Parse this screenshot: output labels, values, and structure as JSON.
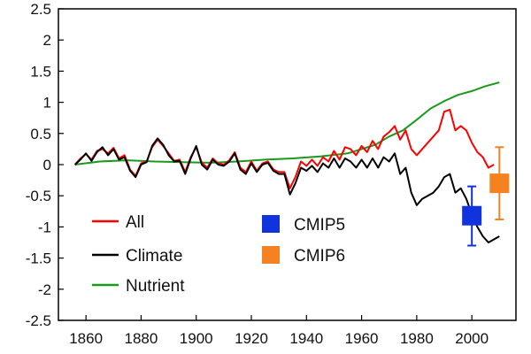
{
  "chart_data": {
    "type": "line",
    "title": "",
    "xlabel": "",
    "ylabel": "",
    "xlim": [
      1850,
      2016
    ],
    "ylim": [
      -2.5,
      2.5
    ],
    "xticks": [
      "1860",
      "1880",
      "1900",
      "1920",
      "1940",
      "1960",
      "1980",
      "2000"
    ],
    "yticks": [
      "2.5",
      "2",
      "1.5",
      "1",
      "0.5",
      "0",
      "-0.5",
      "-1",
      "-1.5",
      "-2",
      "-2.5"
    ],
    "grid": false,
    "legend_position": "lower-left",
    "series": [
      {
        "name": "All",
        "color": "#ff0000",
        "points": [
          [
            1856,
            0.0
          ],
          [
            1858,
            0.1
          ],
          [
            1860,
            0.17
          ],
          [
            1862,
            0.08
          ],
          [
            1864,
            0.22
          ],
          [
            1866,
            0.25
          ],
          [
            1868,
            0.18
          ],
          [
            1870,
            0.27
          ],
          [
            1872,
            0.1
          ],
          [
            1874,
            0.15
          ],
          [
            1876,
            -0.08
          ],
          [
            1878,
            -0.18
          ],
          [
            1880,
            0.02
          ],
          [
            1882,
            0.05
          ],
          [
            1884,
            0.28
          ],
          [
            1886,
            0.4
          ],
          [
            1888,
            0.3
          ],
          [
            1890,
            0.18
          ],
          [
            1892,
            0.06
          ],
          [
            1894,
            0.08
          ],
          [
            1896,
            -0.12
          ],
          [
            1898,
            0.12
          ],
          [
            1900,
            0.28
          ],
          [
            1902,
            0.03
          ],
          [
            1904,
            -0.05
          ],
          [
            1906,
            0.1
          ],
          [
            1908,
            0.02
          ],
          [
            1910,
            0.0
          ],
          [
            1912,
            0.07
          ],
          [
            1914,
            0.2
          ],
          [
            1916,
            -0.05
          ],
          [
            1918,
            -0.12
          ],
          [
            1920,
            0.05
          ],
          [
            1922,
            -0.1
          ],
          [
            1924,
            0.02
          ],
          [
            1926,
            0.05
          ],
          [
            1928,
            -0.08
          ],
          [
            1930,
            -0.12
          ],
          [
            1932,
            -0.12
          ],
          [
            1934,
            -0.38
          ],
          [
            1936,
            -0.2
          ],
          [
            1938,
            0.05
          ],
          [
            1940,
            -0.02
          ],
          [
            1942,
            0.08
          ],
          [
            1944,
            -0.02
          ],
          [
            1946,
            0.12
          ],
          [
            1948,
            0.05
          ],
          [
            1950,
            0.22
          ],
          [
            1952,
            0.08
          ],
          [
            1954,
            0.28
          ],
          [
            1956,
            0.25
          ],
          [
            1958,
            0.15
          ],
          [
            1960,
            0.3
          ],
          [
            1962,
            0.2
          ],
          [
            1964,
            0.38
          ],
          [
            1966,
            0.25
          ],
          [
            1968,
            0.45
          ],
          [
            1970,
            0.52
          ],
          [
            1972,
            0.62
          ],
          [
            1974,
            0.4
          ],
          [
            1976,
            0.55
          ],
          [
            1978,
            0.25
          ],
          [
            1980,
            0.15
          ],
          [
            1982,
            0.25
          ],
          [
            1984,
            0.35
          ],
          [
            1986,
            0.45
          ],
          [
            1988,
            0.55
          ],
          [
            1990,
            0.85
          ],
          [
            1992,
            0.88
          ],
          [
            1994,
            0.55
          ],
          [
            1996,
            0.62
          ],
          [
            1998,
            0.55
          ],
          [
            2000,
            0.35
          ],
          [
            2002,
            0.2
          ],
          [
            2004,
            0.12
          ],
          [
            2006,
            -0.05
          ],
          [
            2008,
            0.0
          ]
        ]
      },
      {
        "name": "Climate",
        "color": "#000000",
        "points": [
          [
            1856,
            0.0
          ],
          [
            1858,
            0.08
          ],
          [
            1860,
            0.18
          ],
          [
            1862,
            0.06
          ],
          [
            1864,
            0.2
          ],
          [
            1866,
            0.28
          ],
          [
            1868,
            0.15
          ],
          [
            1870,
            0.25
          ],
          [
            1872,
            0.08
          ],
          [
            1874,
            0.12
          ],
          [
            1876,
            -0.1
          ],
          [
            1878,
            -0.2
          ],
          [
            1880,
            0.0
          ],
          [
            1882,
            0.04
          ],
          [
            1884,
            0.3
          ],
          [
            1886,
            0.42
          ],
          [
            1888,
            0.32
          ],
          [
            1890,
            0.15
          ],
          [
            1892,
            0.05
          ],
          [
            1894,
            0.06
          ],
          [
            1896,
            -0.15
          ],
          [
            1898,
            0.1
          ],
          [
            1900,
            0.3
          ],
          [
            1902,
            0.0
          ],
          [
            1904,
            -0.08
          ],
          [
            1906,
            0.08
          ],
          [
            1908,
            0.0
          ],
          [
            1910,
            -0.02
          ],
          [
            1912,
            0.05
          ],
          [
            1914,
            0.18
          ],
          [
            1916,
            -0.08
          ],
          [
            1918,
            -0.15
          ],
          [
            1920,
            0.02
          ],
          [
            1922,
            -0.12
          ],
          [
            1924,
            0.0
          ],
          [
            1926,
            0.03
          ],
          [
            1928,
            -0.1
          ],
          [
            1930,
            -0.15
          ],
          [
            1932,
            -0.15
          ],
          [
            1934,
            -0.48
          ],
          [
            1936,
            -0.3
          ],
          [
            1938,
            -0.05
          ],
          [
            1940,
            -0.1
          ],
          [
            1942,
            -0.02
          ],
          [
            1944,
            -0.12
          ],
          [
            1946,
            0.02
          ],
          [
            1948,
            -0.05
          ],
          [
            1950,
            0.1
          ],
          [
            1952,
            -0.05
          ],
          [
            1954,
            0.1
          ],
          [
            1956,
            0.05
          ],
          [
            1958,
            -0.05
          ],
          [
            1960,
            0.08
          ],
          [
            1962,
            -0.05
          ],
          [
            1964,
            0.1
          ],
          [
            1966,
            -0.05
          ],
          [
            1968,
            0.12
          ],
          [
            1970,
            0.05
          ],
          [
            1972,
            0.18
          ],
          [
            1974,
            -0.15
          ],
          [
            1976,
            -0.05
          ],
          [
            1978,
            -0.45
          ],
          [
            1980,
            -0.65
          ],
          [
            1982,
            -0.55
          ],
          [
            1984,
            -0.5
          ],
          [
            1986,
            -0.45
          ],
          [
            1988,
            -0.35
          ],
          [
            1990,
            -0.2
          ],
          [
            1992,
            -0.15
          ],
          [
            1994,
            -0.45
          ],
          [
            1996,
            -0.38
          ],
          [
            1998,
            -0.55
          ],
          [
            2000,
            -0.8
          ],
          [
            2002,
            -1.0
          ],
          [
            2004,
            -1.15
          ],
          [
            2006,
            -1.25
          ],
          [
            2008,
            -1.2
          ],
          [
            2010,
            -1.15
          ]
        ]
      },
      {
        "name": "Nutrient",
        "color": "#1a9a1a",
        "points": [
          [
            1856,
            0.0
          ],
          [
            1865,
            0.05
          ],
          [
            1875,
            0.07
          ],
          [
            1885,
            0.05
          ],
          [
            1895,
            0.04
          ],
          [
            1905,
            0.03
          ],
          [
            1915,
            0.05
          ],
          [
            1925,
            0.08
          ],
          [
            1935,
            0.1
          ],
          [
            1945,
            0.13
          ],
          [
            1955,
            0.18
          ],
          [
            1960,
            0.25
          ],
          [
            1965,
            0.32
          ],
          [
            1970,
            0.45
          ],
          [
            1975,
            0.55
          ],
          [
            1980,
            0.72
          ],
          [
            1985,
            0.9
          ],
          [
            1990,
            1.02
          ],
          [
            1995,
            1.12
          ],
          [
            2000,
            1.18
          ],
          [
            2005,
            1.26
          ],
          [
            2010,
            1.32
          ]
        ]
      }
    ],
    "markers": [
      {
        "name": "CMIP5",
        "color": "#1133dd",
        "x": 2000,
        "y": -0.82,
        "ylow": -1.3,
        "yhigh": -0.35
      },
      {
        "name": "CMIP6",
        "color": "#f58220",
        "x": 2010,
        "y": -0.3,
        "ylow": -0.88,
        "yhigh": 0.28
      }
    ]
  }
}
